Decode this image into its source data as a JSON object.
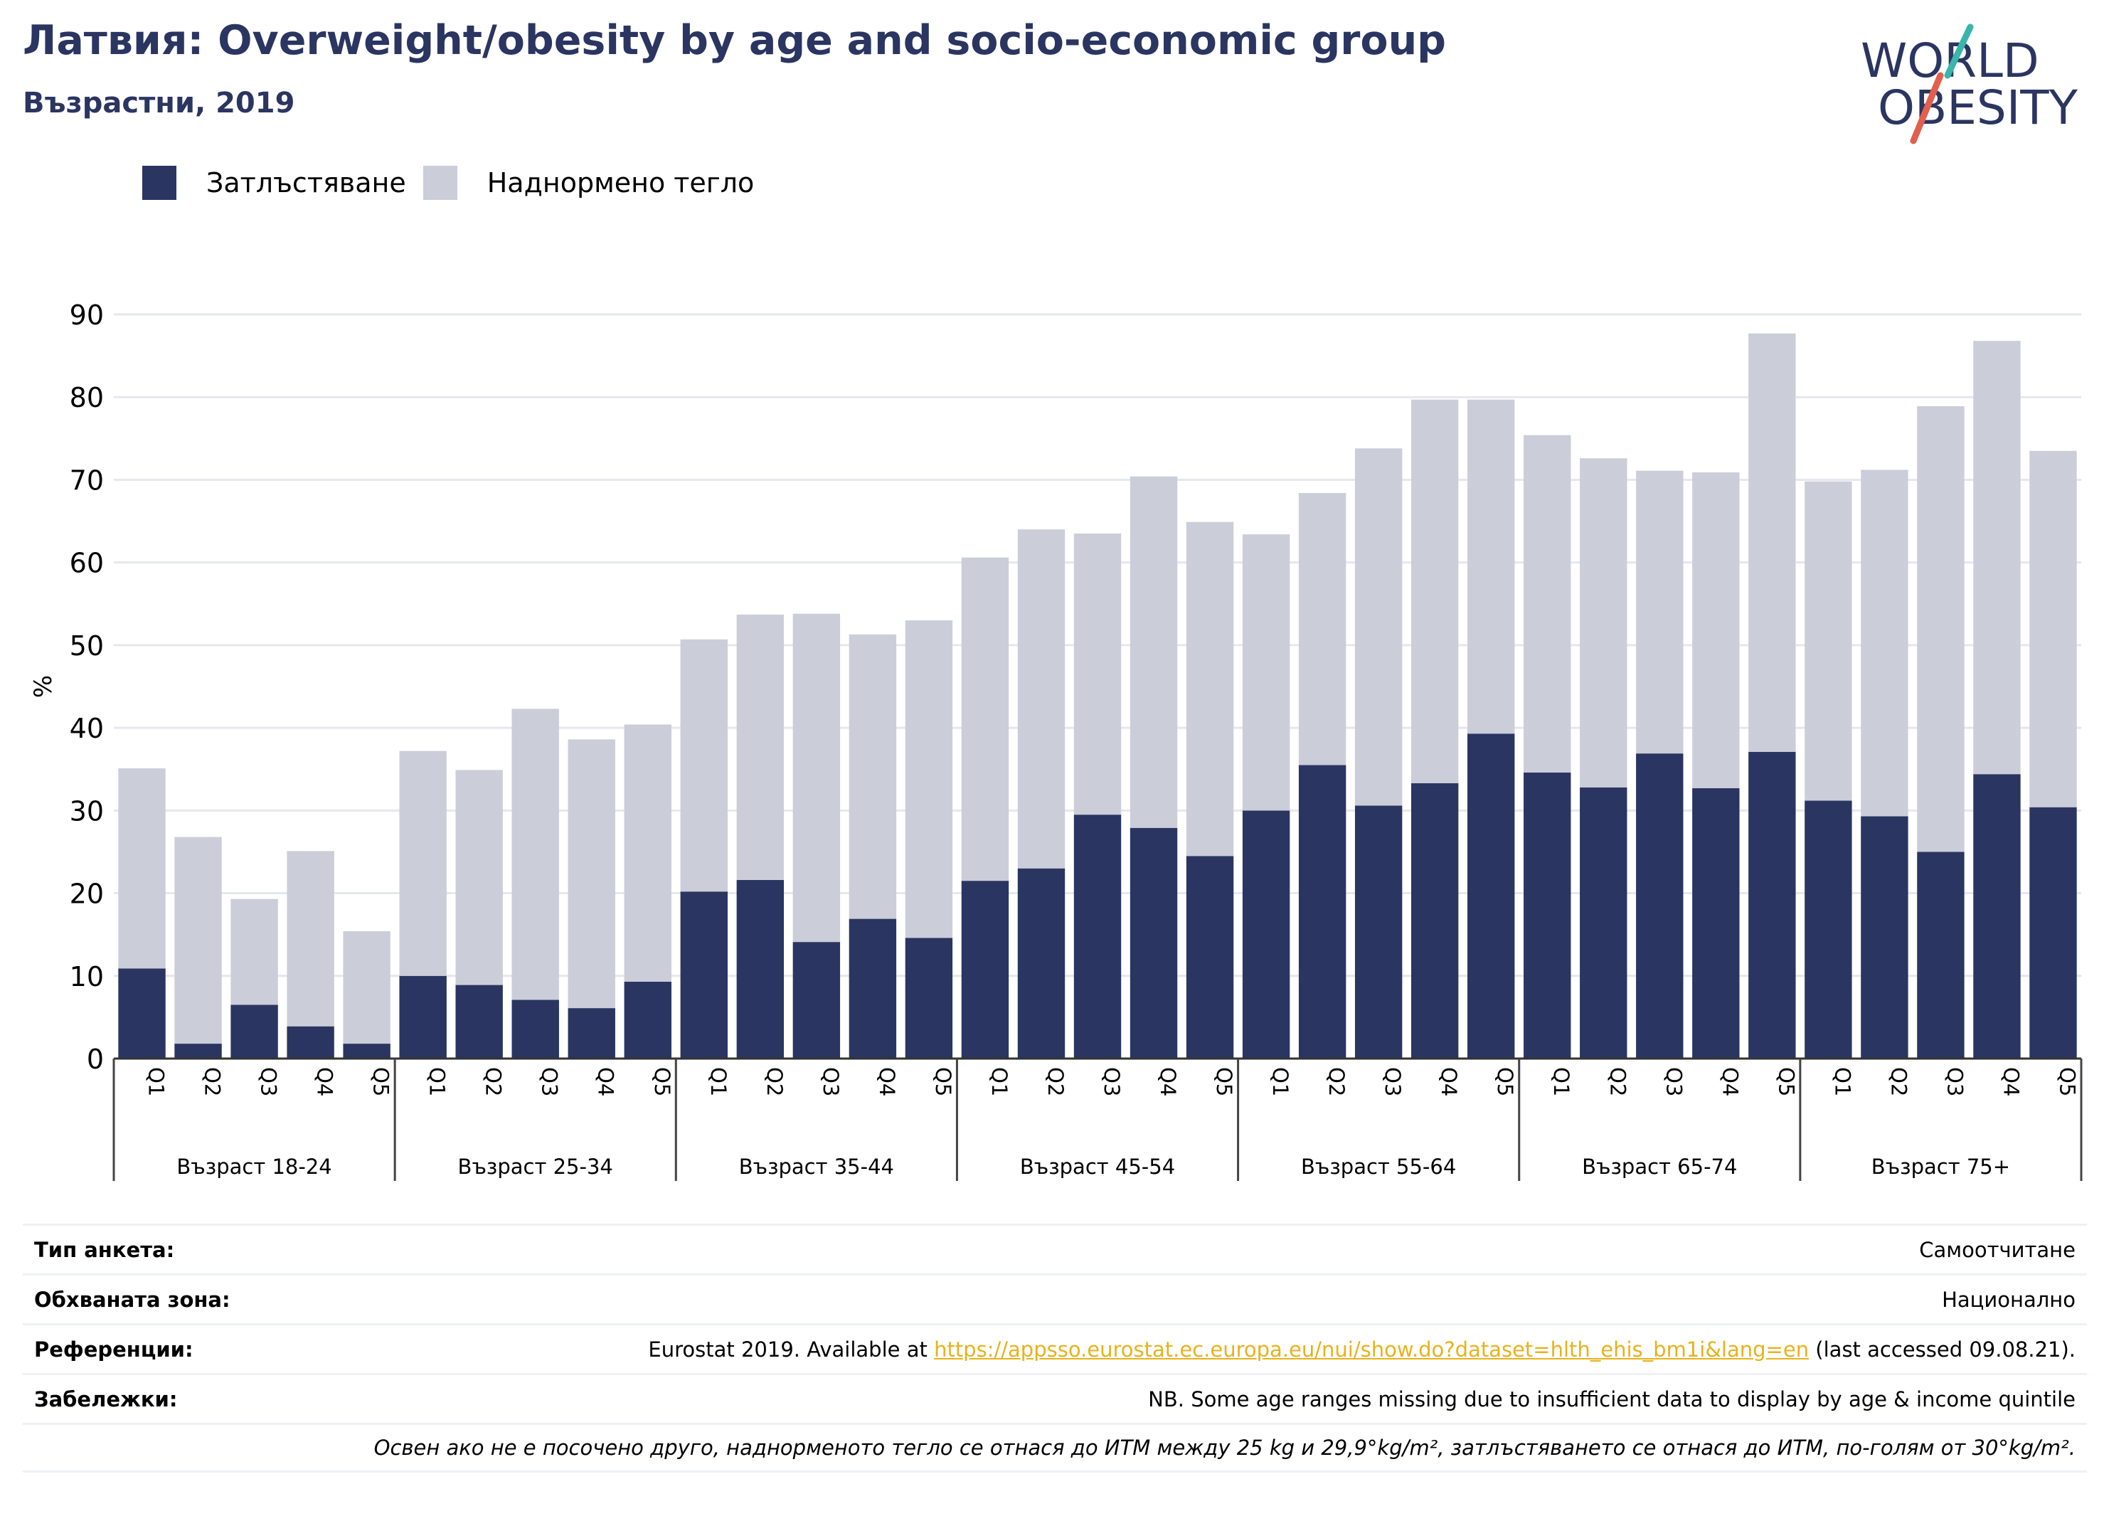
{
  "title": "Латвия: Overweight/obesity by age and socio-economic group",
  "subtitle": "Възрастни, 2019",
  "logo": {
    "line1": "WORLD",
    "line2": "OBESITY"
  },
  "colors": {
    "obesity": "#2b3561",
    "overweight": "#cbcdd9",
    "title": "#2b3561",
    "link": "#e8b21c"
  },
  "chart_data": {
    "type": "bar",
    "stacked": true,
    "ylabel": "%",
    "ylim": [
      0,
      90
    ],
    "yticks": [
      0,
      10,
      20,
      30,
      40,
      50,
      60,
      70,
      80,
      90
    ],
    "grid": true,
    "legend_position": "top-left",
    "groups": [
      "Възраст 18-24",
      "Възраст 25-34",
      "Възраст 35-44",
      "Възраст 45-54",
      "Възраст 55-64",
      "Възраст 65-74",
      "Възраст 75+"
    ],
    "categories": [
      "Q1",
      "Q2",
      "Q3",
      "Q4",
      "Q5"
    ],
    "series": [
      {
        "name": "Затлъстяване",
        "values": [
          [
            10.9,
            1.8,
            6.5,
            3.9,
            1.8
          ],
          [
            10.0,
            8.9,
            7.1,
            6.1,
            9.3
          ],
          [
            20.2,
            21.6,
            14.1,
            16.9,
            14.6
          ],
          [
            21.5,
            23.0,
            29.5,
            27.9,
            24.5
          ],
          [
            30.0,
            35.5,
            30.6,
            33.3,
            39.3
          ],
          [
            34.6,
            32.8,
            36.9,
            32.7,
            37.1
          ],
          [
            31.2,
            29.3,
            25.0,
            34.4,
            30.4
          ]
        ]
      },
      {
        "name": "Наднормено тегло",
        "values": [
          [
            24.2,
            25.0,
            12.8,
            21.2,
            13.6
          ],
          [
            27.2,
            26.0,
            35.2,
            32.5,
            31.1
          ],
          [
            30.5,
            32.1,
            39.7,
            34.4,
            38.4
          ],
          [
            39.1,
            41.0,
            34.0,
            42.5,
            40.4
          ],
          [
            33.4,
            32.9,
            43.2,
            46.4,
            40.4
          ],
          [
            40.8,
            39.8,
            34.2,
            38.2,
            50.6
          ],
          [
            38.6,
            41.9,
            53.9,
            52.4,
            43.1
          ]
        ]
      }
    ]
  },
  "info": {
    "survey_type_label": "Тип анкета:",
    "survey_type_value": "Самоотчитане",
    "coverage_label": "Обхваната зона:",
    "coverage_value": "Национално",
    "references_label": "Референции:",
    "references_prefix": "Eurostat 2019. Available at ",
    "references_link": "https://appsso.eurostat.ec.europa.eu/nui/show.do?dataset=hlth_ehis_bm1i&lang=en",
    "references_suffix": " (last accessed 09.08.21).",
    "notes_label": "Забележки:",
    "notes_value": "NB. Some age ranges missing due to insufficient data to display by age & income quintile",
    "definition": "Освен ако не е посочено друго, наднорменото тегло се отнася до ИТМ между 25 kg и 29,9°kg/m², затлъстяването се отнася до ИТМ, по-голям от 30°kg/m²."
  }
}
